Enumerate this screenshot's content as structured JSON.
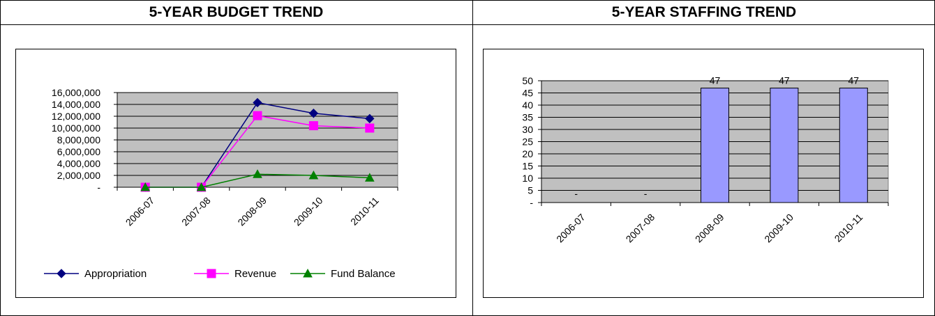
{
  "panels": {
    "budget_title": "5-YEAR BUDGET TREND",
    "staffing_title": "5-YEAR STAFFING TREND"
  },
  "chart_data": [
    {
      "type": "line",
      "title": "5-YEAR BUDGET TREND",
      "categories": [
        "2006-07",
        "2007-08",
        "2008-09",
        "2009-10",
        "2010-11"
      ],
      "series": [
        {
          "name": "Appropriation",
          "values": [
            0,
            0,
            14300000,
            12500000,
            11600000
          ],
          "color": "#000080",
          "marker": "diamond"
        },
        {
          "name": "Revenue",
          "values": [
            0,
            0,
            12100000,
            10400000,
            10000000
          ],
          "color": "#ff00ff",
          "marker": "square"
        },
        {
          "name": "Fund Balance",
          "values": [
            0,
            0,
            2200000,
            2000000,
            1600000
          ],
          "color": "#008000",
          "marker": "triangle"
        }
      ],
      "y_ticks": [
        "-",
        "2,000,000",
        "4,000,000",
        "6,000,000",
        "8,000,000",
        "10,000,000",
        "12,000,000",
        "14,000,000",
        "16,000,000"
      ],
      "ylim": [
        0,
        16000000
      ],
      "grid": true,
      "plot_background": "#c0c0c0",
      "legend_position": "bottom"
    },
    {
      "type": "bar",
      "title": "5-YEAR STAFFING TREND",
      "categories": [
        "2006-07",
        "2007-08",
        "2008-09",
        "2009-10",
        "2010-11"
      ],
      "values": [
        0,
        0,
        47,
        47,
        47
      ],
      "data_labels": [
        "-",
        "-",
        "47",
        "47",
        "47"
      ],
      "y_ticks": [
        "-",
        "5",
        "10",
        "15",
        "20",
        "25",
        "30",
        "35",
        "40",
        "45",
        "50"
      ],
      "ylim": [
        0,
        50
      ],
      "grid": true,
      "bar_color": "#9999ff",
      "plot_background": "#c0c0c0",
      "legend_position": "none"
    }
  ]
}
